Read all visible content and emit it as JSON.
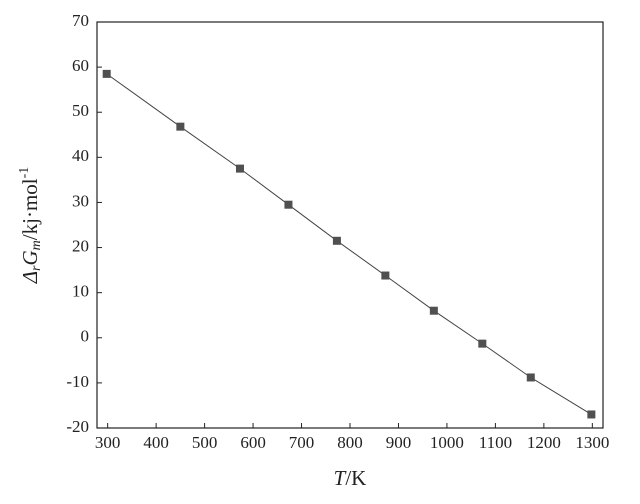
{
  "chart_data": {
    "type": "line",
    "xlabel": [
      "T",
      "/K"
    ],
    "ylabel": [
      "Δ",
      "r",
      "G",
      "m",
      "/kj·mol",
      "-1"
    ],
    "x": [
      298,
      450,
      573,
      673,
      773,
      873,
      973,
      1073,
      1173,
      1298
    ],
    "series": [
      {
        "name": "ΔrGm",
        "color": "#444444",
        "marker_color": "#505050",
        "values": [
          58.5,
          46.8,
          37.5,
          29.5,
          21.5,
          13.8,
          6.0,
          -1.3,
          -8.8,
          -17.0
        ]
      }
    ],
    "xlim": [
      278,
      1322
    ],
    "xticks": [
      300,
      400,
      500,
      600,
      700,
      800,
      900,
      1000,
      1100,
      1200,
      1300
    ],
    "ylim": [
      -20,
      70
    ],
    "yticks": [
      -20,
      -10,
      0,
      10,
      20,
      30,
      40,
      50,
      60,
      70
    ]
  }
}
